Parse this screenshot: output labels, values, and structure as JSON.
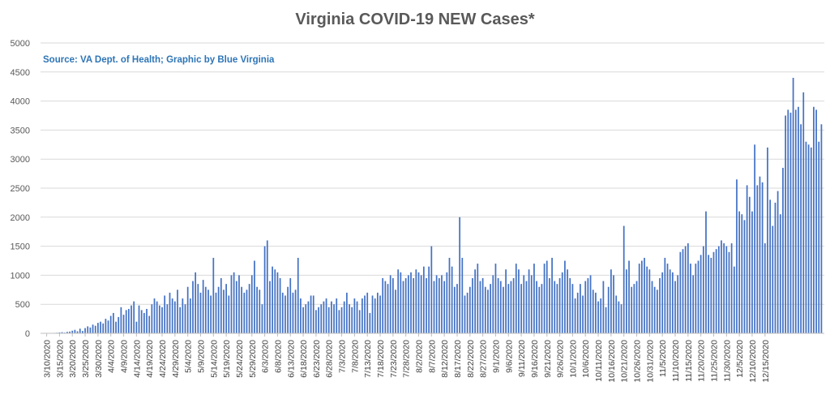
{
  "chart_data": {
    "type": "bar",
    "title": "Virginia COVID-19 NEW Cases*",
    "subtitle": "Source: VA Dept. of Health; Graphic by Blue Virginia",
    "xlabel": "",
    "ylabel": "",
    "ylim": [
      0,
      5000
    ],
    "yticks": [
      0,
      500,
      1000,
      1500,
      2000,
      2500,
      3000,
      3500,
      4000,
      4500,
      5000
    ],
    "xtick_labels": [
      "3/10/2020",
      "3/15/2020",
      "3/20/2020",
      "3/25/2020",
      "3/30/2020",
      "4/4/2020",
      "4/9/2020",
      "4/14/2020",
      "4/19/2020",
      "4/24/2020",
      "4/29/2020",
      "5/4/2020",
      "5/9/2020",
      "5/14/2020",
      "5/19/2020",
      "5/24/2020",
      "5/29/2020",
      "6/3/2020",
      "6/8/2020",
      "6/13/2020",
      "6/18/2020",
      "6/23/2020",
      "6/28/2020",
      "7/3/2020",
      "7/8/2020",
      "7/13/2020",
      "7/18/2020",
      "7/23/2020",
      "7/28/2020",
      "8/2/2020",
      "8/7/2020",
      "8/12/2020",
      "8/17/2020",
      "8/22/2020",
      "8/27/2020",
      "9/1/2020",
      "9/6/2020",
      "9/11/2020",
      "9/16/2020",
      "9/21/2020",
      "9/26/2020",
      "10/1/2020",
      "10/6/2020",
      "10/11/2020",
      "10/16/2020",
      "10/21/2020",
      "10/26/2020",
      "10/31/2020",
      "11/5/2020",
      "11/10/2020",
      "11/15/2020",
      "11/20/2020",
      "11/25/2020",
      "11/30/2020",
      "12/5/2020",
      "12/10/2020",
      "12/15/2020"
    ],
    "grid": true,
    "legend": "none",
    "series": [
      {
        "color": "#4472c4",
        "values": [
          2,
          5,
          3,
          8,
          10,
          15,
          20,
          12,
          25,
          30,
          45,
          60,
          35,
          80,
          40,
          90,
          120,
          100,
          150,
          130,
          180,
          200,
          170,
          250,
          220,
          300,
          350,
          200,
          280,
          450,
          320,
          400,
          420,
          480,
          550,
          200,
          480,
          400,
          350,
          420,
          300,
          500,
          600,
          550,
          480,
          450,
          650,
          500,
          700,
          600,
          550,
          750,
          450,
          600,
          500,
          800,
          600,
          900,
          1050,
          850,
          700,
          920,
          800,
          750,
          650,
          1300,
          700,
          800,
          950,
          750,
          850,
          650,
          1000,
          1050,
          900,
          1000,
          800,
          700,
          750,
          850,
          1000,
          1250,
          800,
          750,
          500,
          1500,
          1600,
          900,
          1150,
          1100,
          1050,
          950,
          700,
          650,
          800,
          950,
          700,
          750,
          1300,
          600,
          450,
          500,
          550,
          650,
          650,
          400,
          450,
          500,
          550,
          600,
          450,
          550,
          500,
          600,
          400,
          450,
          550,
          700,
          500,
          450,
          600,
          550,
          400,
          600,
          650,
          700,
          350,
          650,
          600,
          700,
          650,
          950,
          900,
          850,
          1000,
          950,
          750,
          1100,
          1050,
          900,
          950,
          1000,
          1050,
          950,
          1100,
          1050,
          1000,
          1150,
          950,
          1150,
          1500,
          900,
          1000,
          950,
          1000,
          900,
          1050,
          1300,
          1150,
          800,
          850,
          2000,
          1300,
          650,
          700,
          800,
          950,
          1100,
          1200,
          900,
          950,
          800,
          750,
          850,
          1000,
          1200,
          950,
          900,
          800,
          1100,
          850,
          900,
          950,
          1200,
          1100,
          850,
          1000,
          900,
          1100,
          1000,
          1200,
          900,
          800,
          850,
          1200,
          1250,
          950,
          1300,
          900,
          850,
          950,
          1050,
          1250,
          1100,
          950,
          850,
          600,
          700,
          850,
          650,
          900,
          950,
          1000,
          750,
          700,
          550,
          600,
          900,
          450,
          800,
          1100,
          1000,
          650,
          550,
          500,
          1850,
          1100,
          1250,
          800,
          850,
          900,
          1200,
          1250,
          1300,
          1150,
          1100,
          900,
          800,
          750,
          950,
          1050,
          1300,
          1200,
          1100,
          1050,
          900,
          1000,
          1400,
          1450,
          1500,
          1550,
          1200,
          1000,
          1200,
          1250,
          1350,
          1500,
          2100,
          1350,
          1300,
          1400,
          1450,
          1500,
          1600,
          1550,
          1500,
          1400,
          1550,
          1150,
          2650,
          2100,
          2050,
          1950,
          2550,
          2350,
          2100,
          3250,
          2550,
          2700,
          2600,
          1550,
          3200,
          2300,
          1850,
          2250,
          2450,
          2050,
          2850,
          3750,
          3850,
          3800,
          4400,
          3850,
          3900,
          3600,
          4150,
          3300,
          3250,
          3200,
          3900,
          3850,
          3300,
          3600
        ]
      }
    ]
  }
}
